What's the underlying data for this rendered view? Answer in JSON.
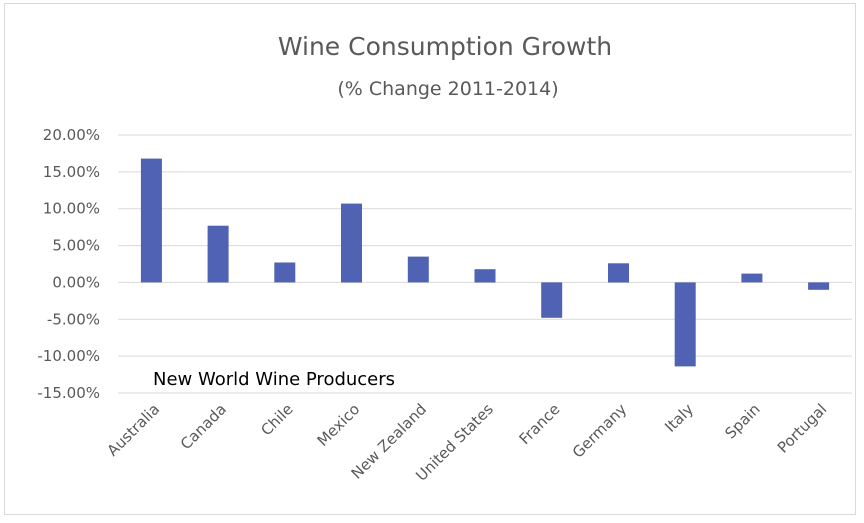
{
  "chart_data": {
    "type": "bar",
    "title": "Wine Consumption Growth",
    "subtitle": "(% Change 2011-2014)",
    "annotation": "New World Wine Producers",
    "categories": [
      "Australia",
      "Canada",
      "Chile",
      "Mexico",
      "New Zealand",
      "United States",
      "France",
      "Germany",
      "Italy",
      "Spain",
      "Portugal"
    ],
    "values": [
      16.8,
      7.7,
      2.7,
      10.7,
      3.5,
      1.8,
      -4.8,
      2.6,
      -11.4,
      1.2,
      -1.0
    ],
    "y_ticks": [
      "20.00%",
      "15.00%",
      "10.00%",
      "5.00%",
      "0.00%",
      "-5.00%",
      "-10.00%",
      "-15.00%"
    ],
    "ylim": [
      -15,
      20
    ],
    "ytick_step": 5,
    "grid": true,
    "bar_color": "#4f62b4",
    "xlabel": "",
    "ylabel": ""
  }
}
